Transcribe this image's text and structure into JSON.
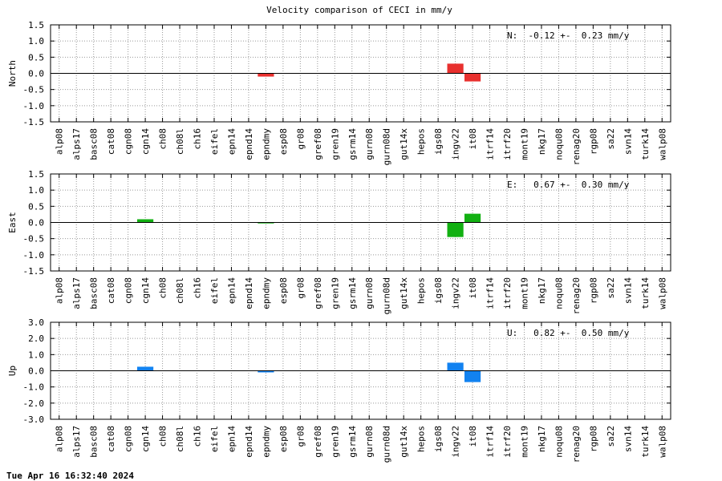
{
  "title": "Velocity comparison of CECI in mm/y",
  "footer": "Tue Apr 16 16:32:40 2024",
  "chart_data": [
    {
      "type": "bar",
      "ylabel": "North",
      "annotation": "N:  -0.12 +-  0.23 mm/y",
      "color": "#e8302e",
      "grid": true,
      "categories": [
        "alp08",
        "alps17",
        "basc08",
        "cat08",
        "cgn08",
        "cgn14",
        "ch08",
        "ch08l",
        "ch16",
        "eifel",
        "epn14",
        "epnd14",
        "epndmy",
        "esp08",
        "gr08",
        "gref08",
        "gren19",
        "gsrm14",
        "gurn08",
        "gurn08d",
        "gut14x",
        "hepos",
        "igs08",
        "ingv22",
        "it08",
        "itrf14",
        "itrf20",
        "mont19",
        "nkg17",
        "noqu08",
        "renag20",
        "rgp08",
        "sa22",
        "svn14",
        "turk14",
        "walp08"
      ],
      "values": [
        0,
        0,
        0,
        0,
        0,
        0,
        0,
        0,
        0,
        0,
        0,
        0,
        -0.1,
        0,
        0,
        0,
        0,
        0,
        0,
        0,
        0,
        0,
        0,
        0.3,
        -0.25,
        0,
        0,
        0,
        0,
        0,
        0,
        0,
        0,
        0,
        0,
        0
      ],
      "ylim": [
        -1.5,
        1.5
      ],
      "yticks": [
        -1.5,
        {
          "value": -1,
          "label": "-1.0"
        },
        -0.5,
        {
          "value": 0,
          "label": "0.0"
        },
        0.5,
        {
          "value": 1,
          "label": "1.0"
        },
        1.5
      ]
    },
    {
      "type": "bar",
      "ylabel": "East",
      "annotation": "E:   0.67 +-  0.30 mm/y",
      "color": "#12b012",
      "grid": true,
      "categories": [
        "alp08",
        "alps17",
        "basc08",
        "cat08",
        "cgn08",
        "cgn14",
        "ch08",
        "ch08l",
        "ch16",
        "eifel",
        "epn14",
        "epnd14",
        "epndmy",
        "esp08",
        "gr08",
        "gref08",
        "gren19",
        "gsrm14",
        "gurn08",
        "gurn08d",
        "gut14x",
        "hepos",
        "igs08",
        "ingv22",
        "it08",
        "itrf14",
        "itrf20",
        "mont19",
        "nkg17",
        "noqu08",
        "renag20",
        "rgp08",
        "sa22",
        "svn14",
        "turk14",
        "walp08"
      ],
      "values": [
        0,
        0,
        0,
        0,
        0,
        0.1,
        0,
        0,
        0,
        0,
        0,
        0,
        -0.03,
        0,
        0,
        0,
        0,
        0,
        0,
        0,
        0,
        0,
        0,
        -0.45,
        0.27,
        0,
        0,
        0,
        0,
        0,
        0,
        0,
        0,
        0,
        0,
        0
      ],
      "ylim": [
        -1.5,
        1.5
      ],
      "yticks": [
        -1.5,
        {
          "value": -1,
          "label": "-1.0"
        },
        -0.5,
        {
          "value": 0,
          "label": "0.0"
        },
        0.5,
        {
          "value": 1,
          "label": "1.0"
        },
        1.5
      ]
    },
    {
      "type": "bar",
      "ylabel": "Up",
      "annotation": "U:   0.82 +-  0.50 mm/y",
      "color": "#1282f0",
      "grid": true,
      "categories": [
        "alp08",
        "alps17",
        "basc08",
        "cat08",
        "cgn08",
        "cgn14",
        "ch08",
        "ch08l",
        "ch16",
        "eifel",
        "epn14",
        "epnd14",
        "epndmy",
        "esp08",
        "gr08",
        "gref08",
        "gren19",
        "gsrm14",
        "gurn08",
        "gurn08d",
        "gut14x",
        "hepos",
        "igs08",
        "ingv22",
        "it08",
        "itrf14",
        "itrf20",
        "mont19",
        "nkg17",
        "noqu08",
        "renag20",
        "rgp08",
        "sa22",
        "svn14",
        "turk14",
        "walp08"
      ],
      "values": [
        0,
        0,
        0,
        0,
        0,
        0.25,
        0,
        0,
        0,
        0,
        0,
        0,
        -0.1,
        0,
        0,
        0,
        0,
        0,
        0,
        0,
        0,
        0,
        0,
        0.5,
        -0.7,
        0,
        0,
        0,
        0,
        0,
        0,
        0,
        0,
        0,
        0,
        0
      ],
      "ylim": [
        -3,
        3
      ],
      "yticks": [
        {
          "value": -3,
          "label": "-3.0"
        },
        {
          "value": -2,
          "label": "-2.0"
        },
        {
          "value": -1,
          "label": "-1.0"
        },
        {
          "value": 0,
          "label": "0.0"
        },
        {
          "value": 1,
          "label": "1.0"
        },
        {
          "value": 2,
          "label": "2.0"
        },
        {
          "value": 3,
          "label": "3.0"
        }
      ]
    }
  ]
}
